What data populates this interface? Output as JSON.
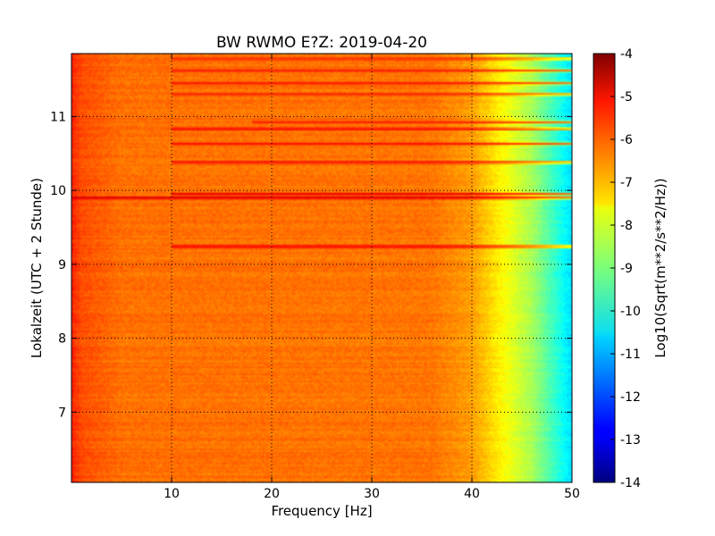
{
  "chart_data": {
    "type": "heatmap",
    "title": "BW RWMO E?Z: 2019-04-20",
    "xlabel": "Frequency [Hz]",
    "ylabel": "Lokalzeit (UTC + 2 Stunde)",
    "xlim": [
      0,
      50
    ],
    "ylim": [
      11.85,
      6.05
    ],
    "x_ticks": [
      {
        "value": 10,
        "label": "10"
      },
      {
        "value": 20,
        "label": "20"
      },
      {
        "value": 30,
        "label": "30"
      },
      {
        "value": 40,
        "label": "40"
      },
      {
        "value": 50,
        "label": "50"
      }
    ],
    "y_ticks": [
      {
        "value": 7,
        "label": "7"
      },
      {
        "value": 8,
        "label": "8"
      },
      {
        "value": 9,
        "label": "9"
      },
      {
        "value": 10,
        "label": "10"
      },
      {
        "value": 11,
        "label": "11"
      }
    ],
    "grid": true,
    "grid_style": "dotted",
    "colormap": "jet",
    "colorbar": {
      "label": "Log10(Sqrt(m**2/s**2/Hz))",
      "range": [
        -14,
        -4
      ],
      "ticks": [
        "-4",
        "-5",
        "-6",
        "-7",
        "-8",
        "-9",
        "-10",
        "-11",
        "-12",
        "-13",
        "-14"
      ]
    },
    "baseline_profile": [
      {
        "freq": 0,
        "value": -5.6
      },
      {
        "freq": 1,
        "value": -6.0
      },
      {
        "freq": 5,
        "value": -6.35
      },
      {
        "freq": 36,
        "value": -6.4
      },
      {
        "freq": 40,
        "value": -6.8
      },
      {
        "freq": 43,
        "value": -7.7
      },
      {
        "freq": 46,
        "value": -8.6
      },
      {
        "freq": 48,
        "value": -9.6
      },
      {
        "freq": 50,
        "value": -10.6
      }
    ],
    "strong_bands": [
      {
        "time": 9.24,
        "from_freq": 10,
        "value": -4.9
      },
      {
        "time": 9.9,
        "from_freq": 0,
        "value": -4.7
      },
      {
        "time": 9.95,
        "from_freq": 10,
        "value": -4.9
      },
      {
        "time": 10.38,
        "from_freq": 10,
        "value": -5.1
      },
      {
        "time": 10.63,
        "from_freq": 10,
        "value": -5.3
      },
      {
        "time": 10.83,
        "from_freq": 10,
        "value": -5.1
      },
      {
        "time": 10.92,
        "from_freq": 18,
        "value": -5.5
      },
      {
        "time": 11.3,
        "from_freq": 10,
        "value": -5.4
      },
      {
        "time": 11.45,
        "from_freq": 10,
        "value": -5.4
      },
      {
        "time": 11.62,
        "from_freq": 10,
        "value": -5.5
      },
      {
        "time": 11.78,
        "from_freq": 10,
        "value": -5.5
      }
    ]
  }
}
